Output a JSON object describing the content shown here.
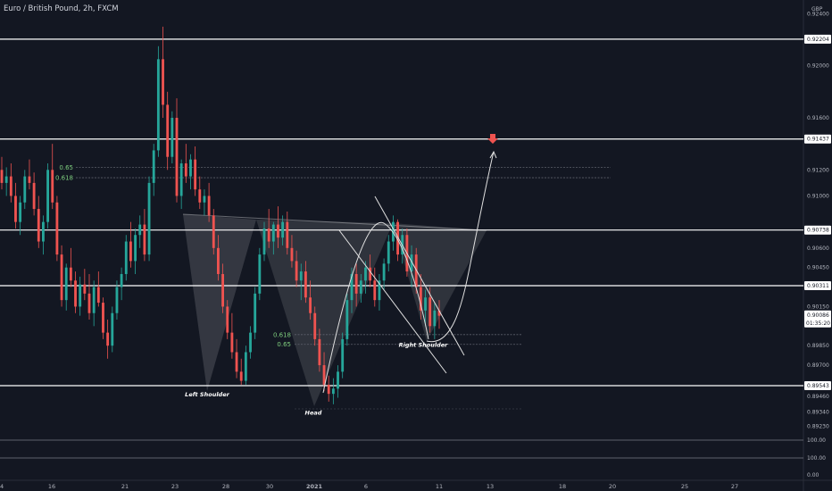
{
  "header": {
    "title": "Euro / British Pound, 2h, FXCM"
  },
  "currency_label": "GBP",
  "countdown": "01:35:20",
  "chart_data": {
    "type": "candlestick",
    "title": "Euro / British Pound, 2h, FXCM",
    "y_axis": {
      "ticks": [
        "0.92400",
        "0.92000",
        "0.91600",
        "0.91200",
        "0.91000",
        "0.90600",
        "0.90450",
        "0.90150",
        "0.89850",
        "0.89700",
        "0.89550",
        "0.89460",
        "0.89340",
        "0.89230"
      ],
      "tick_values": [
        0.924,
        0.92,
        0.916,
        0.912,
        0.91,
        0.906,
        0.9045,
        0.9015,
        0.8985,
        0.897,
        0.8955,
        0.8946,
        0.8934,
        0.8923
      ]
    },
    "x_axis": {
      "ticks": [
        "4",
        "16",
        "21",
        "23",
        "28",
        "30",
        "2021",
        "6",
        "11",
        "13",
        "18",
        "20",
        "25",
        "27"
      ],
      "positions": [
        0,
        58,
        140,
        196,
        253,
        302,
        352,
        410,
        492,
        549,
        630,
        686,
        767,
        823
      ]
    },
    "lower_axis_ticks": [
      "100.00",
      "100.00",
      "0.00"
    ],
    "key_levels": [
      {
        "label": "0.92204",
        "value": 0.92204
      },
      {
        "label": "0.91437",
        "value": 0.91437
      },
      {
        "label": "0.90738",
        "value": 0.90738
      },
      {
        "label": "0.90311",
        "value": 0.90311
      },
      {
        "label": "0.89543",
        "value": 0.89543
      }
    ],
    "current_price": {
      "label": "0.90086",
      "value": 0.90086
    },
    "fib_levels": [
      {
        "label": "0.65",
        "value": 0.9122,
        "side": "left"
      },
      {
        "label": "0.618",
        "value": 0.9114,
        "side": "left"
      },
      {
        "label": "0.618",
        "value": 0.89935,
        "side": "right"
      },
      {
        "label": "0.65",
        "value": 0.8986,
        "side": "right"
      }
    ],
    "annotations": [
      {
        "text": "Left Shoulder",
        "x": 232,
        "value": 0.8946
      },
      {
        "text": "Head",
        "x": 351,
        "value": 0.8932
      },
      {
        "text": "Right Shoulder",
        "x": 474,
        "value": 0.8984
      }
    ],
    "candles_ohlc": [
      [
        0.912,
        0.913,
        0.9105,
        0.911
      ],
      [
        0.911,
        0.9122,
        0.91,
        0.9115
      ],
      [
        0.9115,
        0.9125,
        0.9095,
        0.91
      ],
      [
        0.91,
        0.911,
        0.9075,
        0.908
      ],
      [
        0.908,
        0.91,
        0.907,
        0.9095
      ],
      [
        0.9095,
        0.912,
        0.909,
        0.9115
      ],
      [
        0.9115,
        0.9128,
        0.9105,
        0.911
      ],
      [
        0.911,
        0.9118,
        0.9085,
        0.909
      ],
      [
        0.909,
        0.91,
        0.906,
        0.9065
      ],
      [
        0.9065,
        0.9085,
        0.9055,
        0.908
      ],
      [
        0.908,
        0.9125,
        0.9075,
        0.912
      ],
      [
        0.912,
        0.914,
        0.909,
        0.9095
      ],
      [
        0.9095,
        0.91,
        0.905,
        0.9055
      ],
      [
        0.9055,
        0.9062,
        0.9015,
        0.902
      ],
      [
        0.902,
        0.9048,
        0.9012,
        0.9045
      ],
      [
        0.9045,
        0.906,
        0.903,
        0.9035
      ],
      [
        0.9035,
        0.9042,
        0.901,
        0.9015
      ],
      [
        0.9015,
        0.9038,
        0.9008,
        0.9032
      ],
      [
        0.9032,
        0.9044,
        0.902,
        0.9025
      ],
      [
        0.9025,
        0.904,
        0.9005,
        0.901
      ],
      [
        0.901,
        0.9035,
        0.9,
        0.903
      ],
      [
        0.903,
        0.9042,
        0.9015,
        0.9018
      ],
      [
        0.9018,
        0.9022,
        0.899,
        0.8995
      ],
      [
        0.8995,
        0.9005,
        0.8975,
        0.8985
      ],
      [
        0.8985,
        0.9015,
        0.898,
        0.901
      ],
      [
        0.901,
        0.9035,
        0.9005,
        0.903
      ],
      [
        0.903,
        0.9045,
        0.902,
        0.904
      ],
      [
        0.904,
        0.907,
        0.9035,
        0.9065
      ],
      [
        0.9065,
        0.908,
        0.9045,
        0.905
      ],
      [
        0.905,
        0.9075,
        0.904,
        0.907
      ],
      [
        0.907,
        0.9085,
        0.906,
        0.9078
      ],
      [
        0.9078,
        0.909,
        0.905,
        0.9055
      ],
      [
        0.9055,
        0.9115,
        0.905,
        0.911
      ],
      [
        0.911,
        0.914,
        0.91,
        0.9135
      ],
      [
        0.9135,
        0.9215,
        0.913,
        0.9205
      ],
      [
        0.9205,
        0.923,
        0.916,
        0.917
      ],
      [
        0.917,
        0.918,
        0.912,
        0.913
      ],
      [
        0.913,
        0.9165,
        0.9125,
        0.916
      ],
      [
        0.916,
        0.9175,
        0.9095,
        0.91
      ],
      [
        0.91,
        0.9128,
        0.909,
        0.9125
      ],
      [
        0.9125,
        0.914,
        0.911,
        0.9115
      ],
      [
        0.9115,
        0.9132,
        0.9105,
        0.9128
      ],
      [
        0.9128,
        0.9138,
        0.91,
        0.9105
      ],
      [
        0.9105,
        0.9115,
        0.909,
        0.9095
      ],
      [
        0.9095,
        0.9105,
        0.9085,
        0.91
      ],
      [
        0.91,
        0.911,
        0.908,
        0.9085
      ],
      [
        0.9085,
        0.909,
        0.9055,
        0.906
      ],
      [
        0.906,
        0.907,
        0.9035,
        0.904
      ],
      [
        0.904,
        0.9048,
        0.901,
        0.9015
      ],
      [
        0.9015,
        0.902,
        0.899,
        0.8995
      ],
      [
        0.8995,
        0.901,
        0.8975,
        0.898
      ],
      [
        0.898,
        0.899,
        0.896,
        0.8965
      ],
      [
        0.8965,
        0.8975,
        0.8955,
        0.8958
      ],
      [
        0.8958,
        0.8985,
        0.8955,
        0.898
      ],
      [
        0.898,
        0.9,
        0.8975,
        0.8995
      ],
      [
        0.8995,
        0.903,
        0.899,
        0.9025
      ],
      [
        0.9025,
        0.906,
        0.902,
        0.9055
      ],
      [
        0.9055,
        0.908,
        0.905,
        0.9075
      ],
      [
        0.9075,
        0.909,
        0.906,
        0.9065
      ],
      [
        0.9065,
        0.908,
        0.9055,
        0.9078
      ],
      [
        0.9078,
        0.9092,
        0.906,
        0.9068
      ],
      [
        0.9068,
        0.9085,
        0.9062,
        0.908
      ],
      [
        0.908,
        0.9088,
        0.9055,
        0.906
      ],
      [
        0.906,
        0.907,
        0.9045,
        0.905
      ],
      [
        0.905,
        0.9058,
        0.903,
        0.9035
      ],
      [
        0.9035,
        0.9048,
        0.902,
        0.9042
      ],
      [
        0.9042,
        0.905,
        0.9018,
        0.9022
      ],
      [
        0.9022,
        0.9035,
        0.9005,
        0.901
      ],
      [
        0.901,
        0.9015,
        0.8985,
        0.899
      ],
      [
        0.899,
        0.8998,
        0.8965,
        0.897
      ],
      [
        0.897,
        0.898,
        0.895,
        0.8955
      ],
      [
        0.8955,
        0.8962,
        0.8942,
        0.8948
      ],
      [
        0.8948,
        0.896,
        0.894,
        0.8952
      ],
      [
        0.8952,
        0.897,
        0.8945,
        0.8965
      ],
      [
        0.8965,
        0.8995,
        0.896,
        0.899
      ],
      [
        0.899,
        0.9025,
        0.8985,
        0.902
      ],
      [
        0.902,
        0.9045,
        0.901,
        0.904
      ],
      [
        0.904,
        0.9048,
        0.9015,
        0.9025
      ],
      [
        0.9025,
        0.904,
        0.9018,
        0.9035
      ],
      [
        0.9035,
        0.905,
        0.9025,
        0.9045
      ],
      [
        0.9045,
        0.9055,
        0.903,
        0.9035
      ],
      [
        0.9035,
        0.9045,
        0.9015,
        0.902
      ],
      [
        0.902,
        0.904,
        0.9012,
        0.9035
      ],
      [
        0.9035,
        0.9052,
        0.9028,
        0.9048
      ],
      [
        0.9048,
        0.907,
        0.9042,
        0.9065
      ],
      [
        0.9065,
        0.9085,
        0.9058,
        0.908
      ],
      [
        0.908,
        0.9082,
        0.905,
        0.9055
      ],
      [
        0.9055,
        0.9075,
        0.9048,
        0.907
      ],
      [
        0.907,
        0.9075,
        0.9038,
        0.9042
      ],
      [
        0.9042,
        0.9062,
        0.903,
        0.9055
      ],
      [
        0.9055,
        0.906,
        0.9025,
        0.903
      ],
      [
        0.903,
        0.904,
        0.9005,
        0.9012
      ],
      [
        0.9012,
        0.9028,
        0.9,
        0.9022
      ],
      [
        0.9022,
        0.903,
        0.8995,
        0.9
      ],
      [
        0.9,
        0.9018,
        0.899,
        0.9012
      ],
      [
        0.9012,
        0.902,
        0.8998,
        0.9008
      ]
    ]
  }
}
